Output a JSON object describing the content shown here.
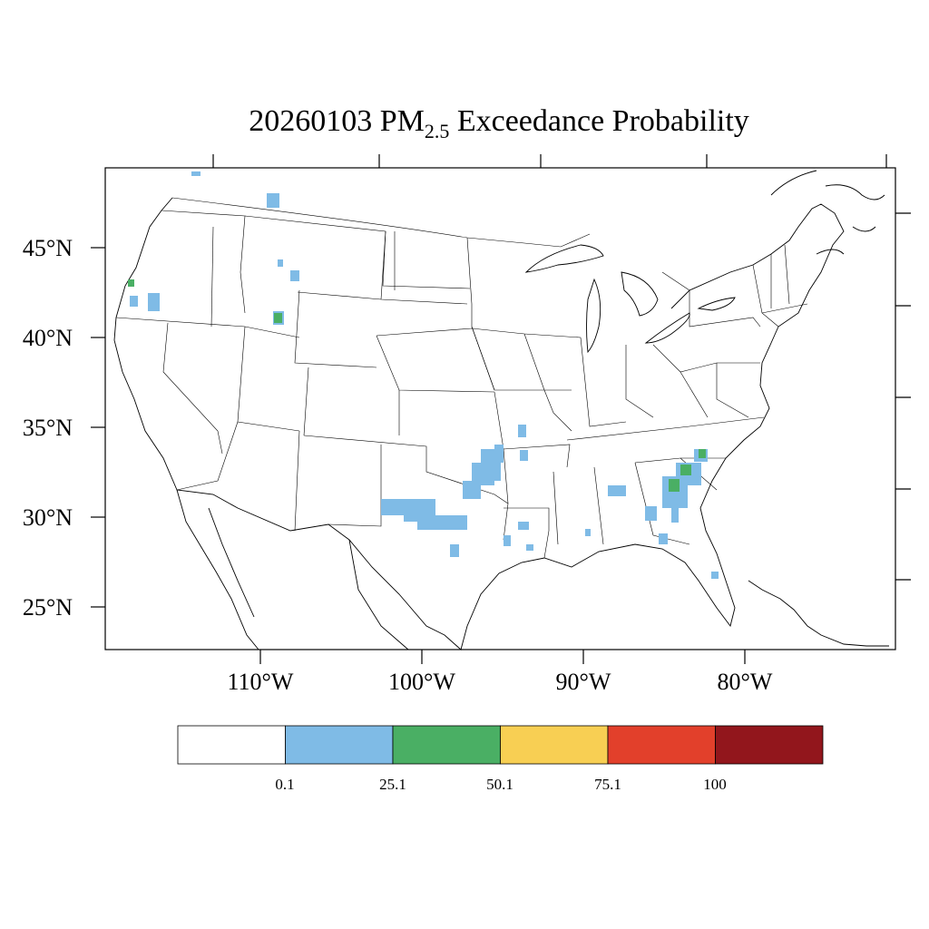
{
  "title": {
    "main": "20260103 PM",
    "subscript": "2.5",
    "suffix": " Exceedance Probability"
  },
  "axes": {
    "lon_labels": [
      "110°W",
      "100°W",
      "90°W",
      "80°W"
    ],
    "lat_labels": [
      "45°N",
      "40°N",
      "35°N",
      "30°N",
      "25°N"
    ]
  },
  "colorbar": {
    "colors": [
      "#ffffff",
      "#7fbbe6",
      "#4aaf64",
      "#f8cf53",
      "#e2402b",
      "#92161c"
    ],
    "labels": [
      "0.1",
      "25.1",
      "50.1",
      "75.1",
      "100"
    ]
  },
  "map_data": {
    "field": "PM2.5 exceedance probability (%)",
    "date": "20260103",
    "colors_by_bin": {
      "0.1-25.1": "#7fbbe6",
      "25.1-50.1": "#4aaf64"
    }
  }
}
